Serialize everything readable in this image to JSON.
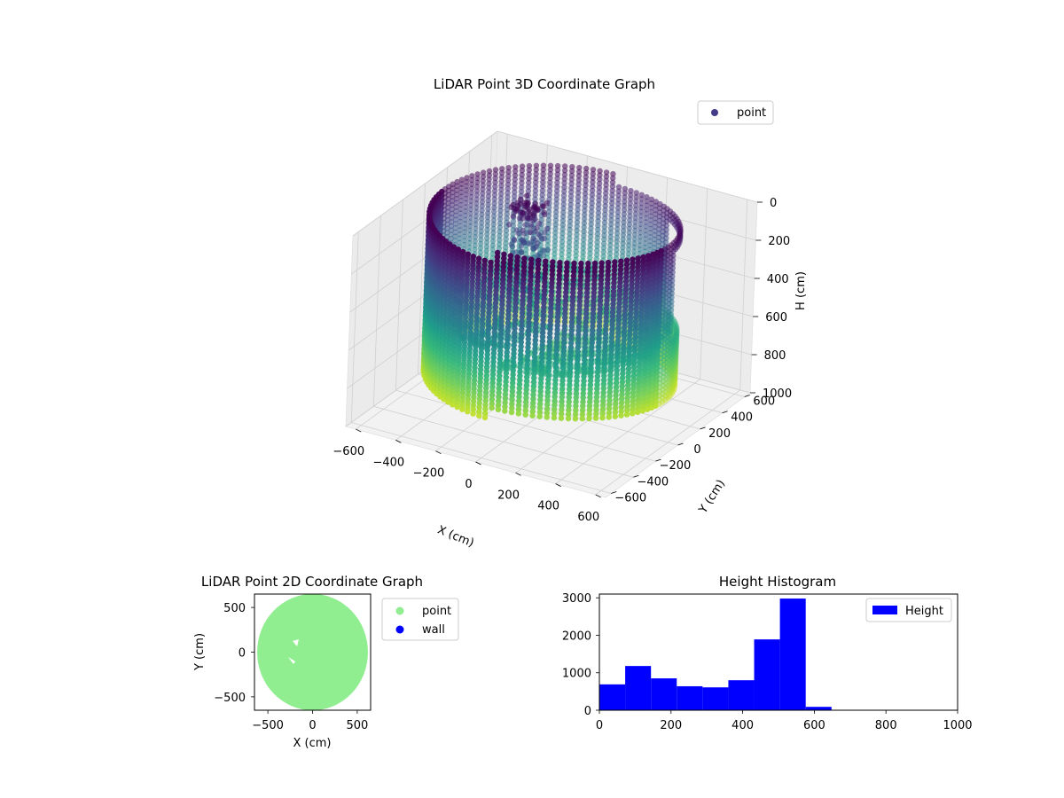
{
  "colors": {
    "background": "#ffffff",
    "pane_fill": "#f2f2f2",
    "grid": "#d0d0d0",
    "point_2d": "#90ee90",
    "wall_2d": "#0000ff",
    "histogram": "#0000ff",
    "legend_point_3d": "#433b86"
  },
  "chart_data": [
    {
      "id": "scatter3d",
      "type": "scatter",
      "projection": "3d",
      "title": "LiDAR Point 3D Coordinate Graph",
      "xlabel": "X (cm)",
      "ylabel": "Y (cm)",
      "zlabel": "H (cm)",
      "xlim": [
        -650,
        650
      ],
      "ylim": [
        -650,
        650
      ],
      "zlim": [
        0,
        1000
      ],
      "z_inverted": true,
      "xticks": [
        "−600",
        "−400",
        "−200",
        "0",
        "200",
        "400",
        "600"
      ],
      "yticks": [
        "−600",
        "−400",
        "−200",
        "0",
        "200",
        "400",
        "600"
      ],
      "zticks": [
        "0",
        "200",
        "400",
        "600",
        "800",
        "1000"
      ],
      "colormap": "viridis",
      "color_by": "height",
      "grid": true,
      "legend": {
        "position": "top-right",
        "entries": [
          "point"
        ]
      },
      "series": [
        {
          "name": "point",
          "cylinder_wall": {
            "center": [
              0,
              0
            ],
            "radius": 550,
            "h_min": 0,
            "h_max": 1000
          },
          "floor": {
            "h": 620
          },
          "central_cluster": {
            "center": [
              -170,
              80
            ],
            "h_range": [
              0,
              550
            ]
          },
          "sample_count": 9700
        }
      ]
    },
    {
      "id": "scatter2d",
      "type": "scatter",
      "title": "LiDAR Point 2D Coordinate Graph",
      "xlabel": "X (cm)",
      "ylabel": "Y (cm)",
      "xlim": [
        -650,
        650
      ],
      "ylim": [
        -650,
        650
      ],
      "xticks": [
        -500,
        0,
        500
      ],
      "yticks": [
        -500,
        0,
        500
      ],
      "tick_labels_x": [
        "−500",
        "0",
        "500"
      ],
      "tick_labels_y": [
        "−500",
        "0",
        "500"
      ],
      "grid": false,
      "legend": {
        "position": "outside-right",
        "entries": [
          "point",
          "wall"
        ]
      },
      "series": [
        {
          "name": "point",
          "region": {
            "shape": "disc",
            "center": [
              0,
              0
            ],
            "radius": 620
          }
        },
        {
          "name": "wall",
          "values": []
        }
      ]
    },
    {
      "id": "histogram",
      "type": "bar",
      "title": "Height Histogram",
      "xlabel": "",
      "ylabel": "",
      "xlim": [
        0,
        1000
      ],
      "ylim": [
        0,
        3100
      ],
      "xticks": [
        0,
        200,
        400,
        600,
        800,
        1000
      ],
      "yticks": [
        0,
        1000,
        2000,
        3000
      ],
      "bin_edges": [
        0,
        72,
        144,
        216,
        288,
        360,
        432,
        504,
        576,
        648
      ],
      "series": [
        {
          "name": "Height",
          "values": [
            690,
            1180,
            850,
            640,
            610,
            800,
            1890,
            2980,
            90
          ]
        }
      ],
      "legend": {
        "position": "top-right",
        "entries": [
          "Height"
        ]
      },
      "grid": false
    }
  ]
}
